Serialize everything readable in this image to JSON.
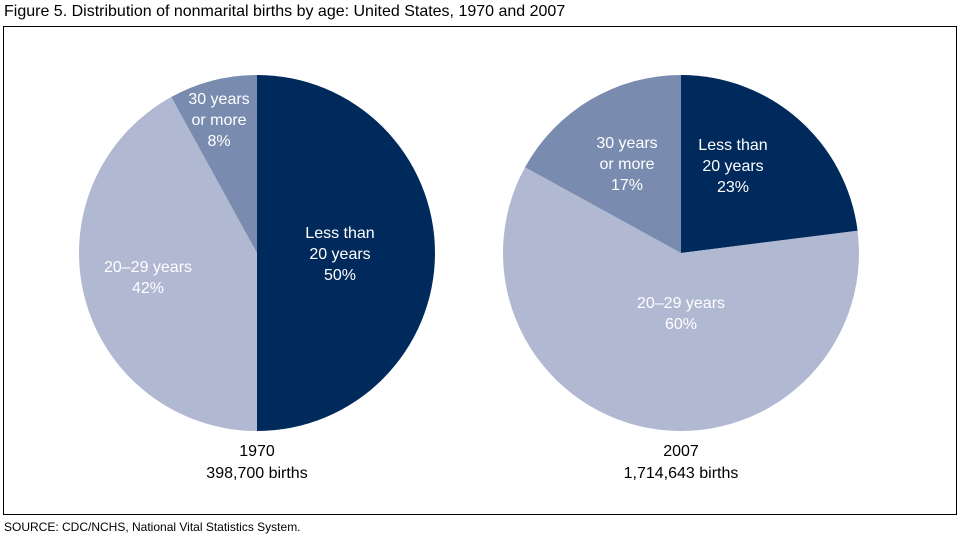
{
  "title": "Figure 5.  Distribution of nonmarital births by age: United States, 1970 and 2007",
  "source": "SOURCE: CDC/NCHS, National Vital Statistics System.",
  "chart_data": [
    {
      "type": "pie",
      "year": "1970",
      "caption": "398,700 births",
      "slices": [
        {
          "label": [
            "Less than",
            "20 years"
          ],
          "value": 50,
          "text": "50%",
          "color": "#002a5c"
        },
        {
          "label": [
            "20–29 years"
          ],
          "value": 42,
          "text": "42%",
          "color": "#b1b8d2"
        },
        {
          "label": [
            "30 years",
            "or more"
          ],
          "value": 8,
          "text": "8%",
          "color": "#7a8bb0"
        }
      ]
    },
    {
      "type": "pie",
      "year": "2007",
      "caption": "1,714,643 births",
      "slices": [
        {
          "label": [
            "Less than",
            "20 years"
          ],
          "value": 23,
          "text": "23%",
          "color": "#002a5c"
        },
        {
          "label": [
            "20–29 years"
          ],
          "value": 60,
          "text": "60%",
          "color": "#b1b8d2"
        },
        {
          "label": [
            "30 years",
            "or more"
          ],
          "value": 17,
          "text": "17%",
          "color": "#7a8bb0"
        }
      ]
    }
  ]
}
